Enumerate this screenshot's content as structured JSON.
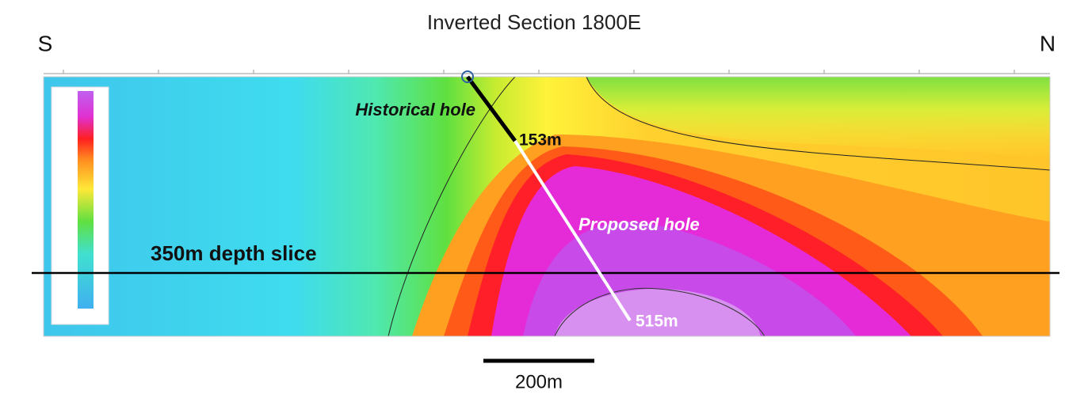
{
  "header": {
    "title": "Inverted Section 1800E",
    "left_direction": "S",
    "right_direction": "N"
  },
  "annotations": {
    "historical_hole": "Historical hole",
    "historical_depth": "153m",
    "proposed_hole": "Proposed hole",
    "proposed_depth": "515m",
    "depth_slice": "350m depth slice"
  },
  "scale_bar": {
    "label": "200m"
  }
}
